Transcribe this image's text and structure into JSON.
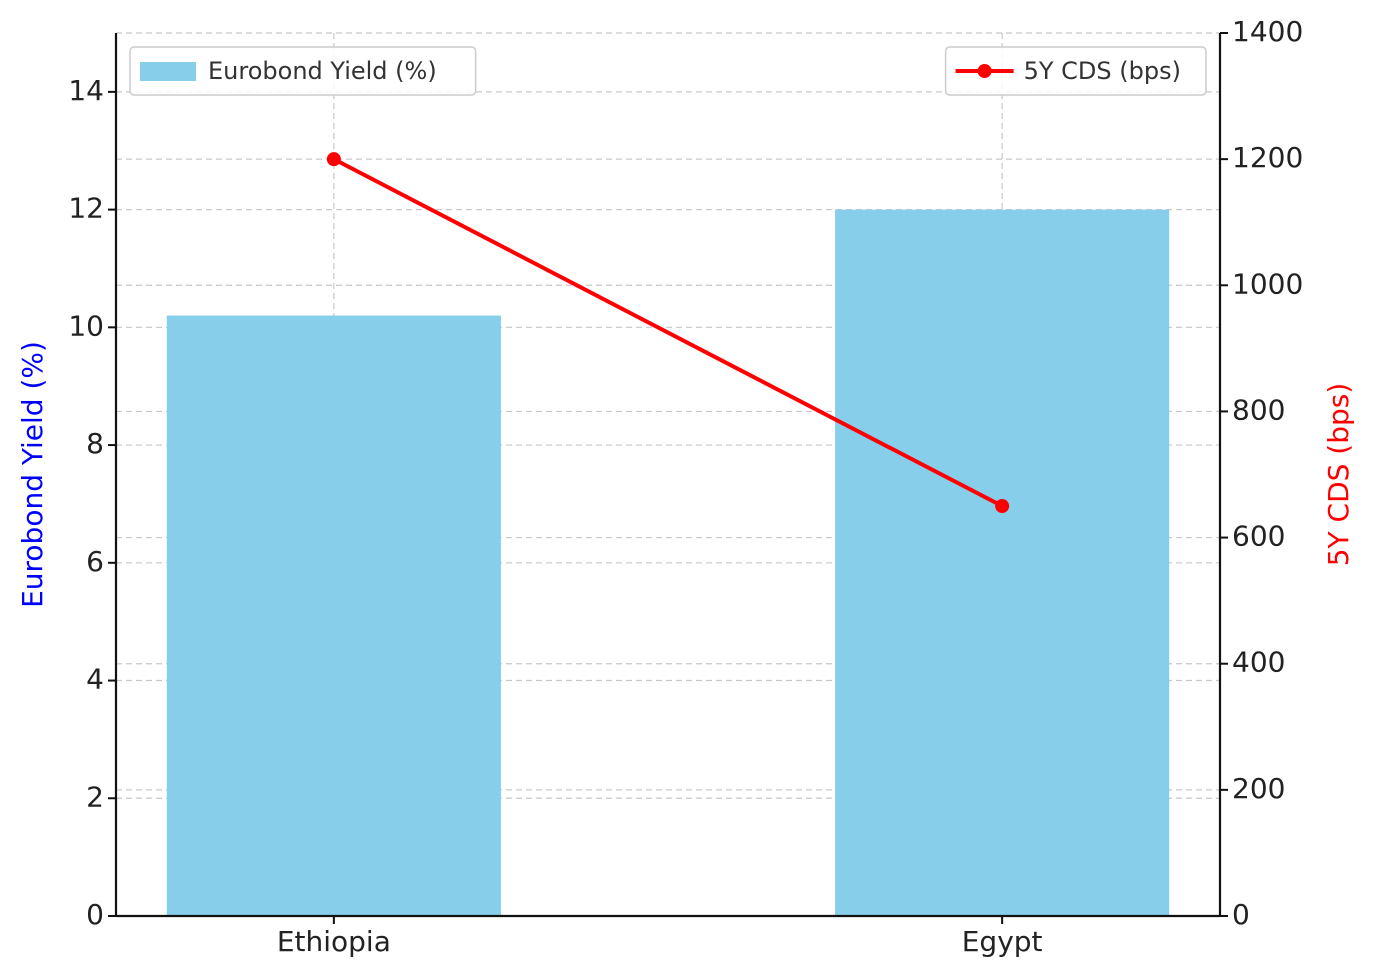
{
  "chart_data": {
    "type": "bar_line",
    "categories": [
      "Ethiopia",
      "Egypt"
    ],
    "series": [
      {
        "name": "Eurobond Yield (%)",
        "type": "bar",
        "axis": "y",
        "color": "#87ceeb",
        "values": [
          10.2,
          12.0
        ],
        "legend_loc": "upper left"
      },
      {
        "name": "5Y CDS (bps)",
        "type": "line",
        "axis": "y2",
        "color": "#ff0000",
        "values": [
          1200,
          650
        ],
        "legend_loc": "upper right"
      }
    ],
    "ylabel": "Eurobond Yield (%)",
    "ylabel_color": "#0000ff",
    "y2label": "5Y CDS (bps)",
    "y2label_color": "#ff0000",
    "ylim": [
      0,
      15
    ],
    "yticks": [
      0,
      2,
      4,
      6,
      8,
      10,
      12,
      14
    ],
    "y2lim": [
      0,
      1400
    ],
    "y2ticks": [
      0,
      200,
      400,
      600,
      800,
      1000,
      1200,
      1400
    ],
    "grid": true
  }
}
